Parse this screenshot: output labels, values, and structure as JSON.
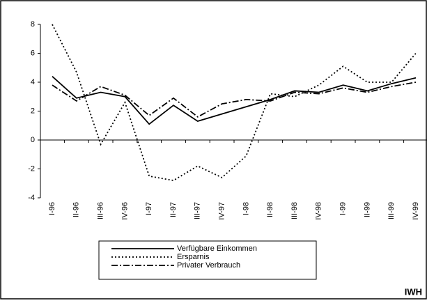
{
  "chart_data": {
    "type": "line",
    "categories": [
      "I-96",
      "II-96",
      "III-96",
      "IV-96",
      "I-97",
      "II-97",
      "III-97",
      "IV-97",
      "I-98",
      "II-98",
      "III-98",
      "IV-98",
      "I-99",
      "II-99",
      "III-99",
      "IV-99"
    ],
    "series": [
      {
        "name": "Verfügbare Einkommen",
        "color": "#000000",
        "dash": "solid",
        "values": [
          4.4,
          2.9,
          3.3,
          3.0,
          1.1,
          2.4,
          1.3,
          1.8,
          2.3,
          2.8,
          3.4,
          3.3,
          3.8,
          3.4,
          3.9,
          4.3
        ]
      },
      {
        "name": "Ersparnis",
        "color": "#000000",
        "dash": "dotted",
        "values": [
          8.0,
          4.7,
          -0.3,
          2.6,
          -2.5,
          -2.8,
          -1.8,
          -2.6,
          -1.1,
          3.2,
          3.0,
          3.8,
          5.1,
          4.0,
          4.0,
          6.0
        ]
      },
      {
        "name": "Privater Verbrauch",
        "color": "#000000",
        "dash": "dashdot",
        "values": [
          3.8,
          2.7,
          3.7,
          3.1,
          1.7,
          2.9,
          1.6,
          2.5,
          2.8,
          2.7,
          3.3,
          3.2,
          3.6,
          3.3,
          3.7,
          4.0
        ]
      }
    ],
    "ylim": [
      -4,
      8
    ],
    "yticks": [
      -4,
      -2,
      0,
      2,
      4,
      6,
      8
    ],
    "grid": false,
    "source": "IWH"
  }
}
